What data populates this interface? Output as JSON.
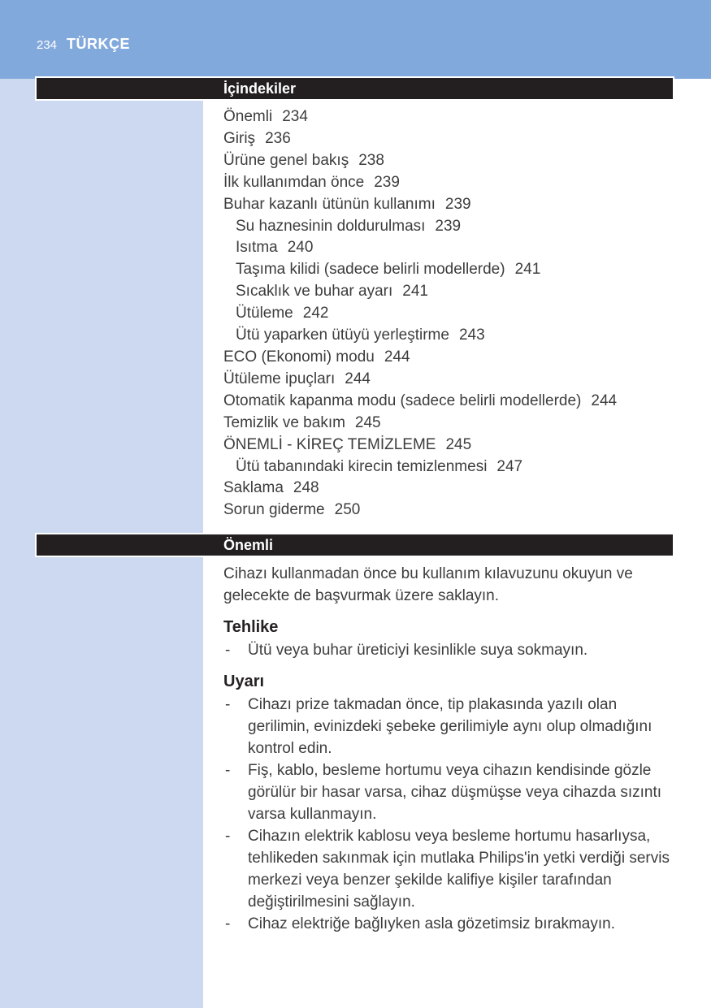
{
  "page": {
    "number": "234",
    "language_label": "TÜRKÇE"
  },
  "colors": {
    "band_blue": "#82A9DC",
    "sidebar_blue": "#CCD9F0",
    "bar_black": "#231F20",
    "body_text": "#3D3D3D",
    "bar_text": "#FFFFFF"
  },
  "toc": {
    "header": "İçindekiler",
    "items": [
      {
        "label": "Önemli",
        "page": "234"
      },
      {
        "label": "Giriş",
        "page": "236"
      },
      {
        "label": "Ürüne genel bakış",
        "page": "238"
      },
      {
        "label": "İlk kullanımdan önce",
        "page": "239"
      },
      {
        "label": "Buhar kazanlı ütünün kullanımı",
        "page": "239"
      },
      {
        "label": "Su haznesinin doldurulması",
        "page": "239"
      },
      {
        "label": "Isıtma",
        "page": "240"
      },
      {
        "label": "Taşıma kilidi (sadece belirli modellerde)",
        "page": "241"
      },
      {
        "label": "Sıcaklık ve buhar ayarı",
        "page": "241"
      },
      {
        "label": "Ütüleme",
        "page": "242"
      },
      {
        "label": "Ütü yaparken ütüyü yerleştirme",
        "page": "243"
      },
      {
        "label": "ECO (Ekonomi) modu",
        "page": "244"
      },
      {
        "label": "Ütüleme ipuçları",
        "page": "244"
      },
      {
        "label": "Otomatik kapanma modu (sadece belirli modellerde)",
        "page": "244"
      },
      {
        "label": "Temizlik ve bakım",
        "page": "245"
      },
      {
        "label": "ÖNEMLİ - KİREÇ TEMİZLEME",
        "page": "245"
      },
      {
        "label": "Ütü tabanındaki kirecin temizlenmesi",
        "page": "247"
      },
      {
        "label": "Saklama",
        "page": "248"
      },
      {
        "label": "Sorun giderme",
        "page": "250"
      }
    ]
  },
  "important": {
    "header": "Önemli",
    "bullet_marker": "-",
    "intro": "Cihazı kullanmadan önce bu kullanım kılavuzunu okuyun ve gelecekte de başvurmak üzere saklayın.",
    "danger": {
      "heading": "Tehlike",
      "bullets": [
        "Ütü veya buhar üreticiyi kesinlikle suya sokmayın."
      ]
    },
    "warning": {
      "heading": "Uyarı",
      "bullets": [
        "Cihazı prize takmadan önce, tip plakasında yazılı olan gerilimin, evinizdeki şebeke gerilimiyle aynı olup olmadığını kontrol edin.",
        "Fiş, kablo, besleme hortumu veya cihazın kendisinde gözle görülür bir hasar varsa, cihaz düşmüşse veya cihazda sızıntı varsa kullanmayın.",
        "Cihazın elektrik kablosu veya besleme hortumu hasarlıysa, tehlikeden sakınmak için mutlaka Philips'in yetki verdiği servis merkezi veya benzer şekilde kalifiye kişiler tarafından değiştirilmesini sağlayın.",
        "Cihaz elektriğe bağlıyken asla gözetimsiz bırakmayın."
      ]
    }
  }
}
